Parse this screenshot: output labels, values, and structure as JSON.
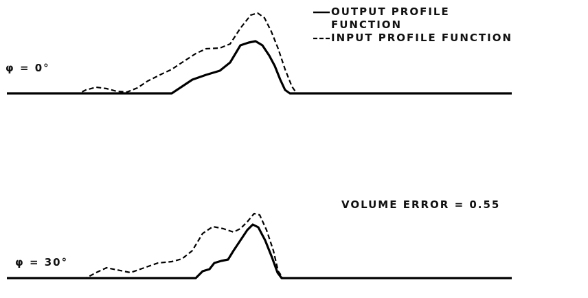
{
  "chart_data": [
    {
      "type": "line",
      "annotation": "φ = 0°",
      "legend": "top-right",
      "xlim": [
        10,
        745
      ],
      "ylim": [
        0,
        125
      ],
      "series": [
        {
          "name": "OUTPUT PROFILE FUNCTION",
          "color": "#000000",
          "dash": false,
          "x": [
            10,
            250,
            265,
            280,
            300,
            320,
            335,
            350,
            362,
            372,
            382,
            392,
            400,
            408,
            415,
            422,
            745
          ],
          "values": [
            0,
            0,
            10,
            20,
            27,
            33,
            45,
            70,
            74,
            76,
            70,
            55,
            40,
            20,
            5,
            0,
            0
          ]
        },
        {
          "name": "INPUT PROFILE FUNCTION",
          "color": "#000000",
          "dash": true,
          "x": [
            10,
            115,
            125,
            140,
            155,
            170,
            185,
            200,
            215,
            235,
            250,
            265,
            285,
            300,
            320,
            335,
            350,
            365,
            375,
            385,
            395,
            405,
            415,
            425,
            432,
            745
          ],
          "values": [
            0,
            0,
            5,
            9,
            7,
            3,
            2,
            8,
            18,
            28,
            35,
            45,
            58,
            65,
            66,
            72,
            95,
            114,
            117,
            110,
            90,
            65,
            35,
            10,
            0,
            0
          ]
        }
      ]
    },
    {
      "type": "line",
      "annotation": "φ = 30°",
      "note": "VOLUME ERROR = 0.55",
      "xlim": [
        10,
        745
      ],
      "ylim": [
        0,
        125
      ],
      "series": [
        {
          "color": "#000000",
          "dash": false,
          "x": [
            10,
            285,
            295,
            305,
            312,
            322,
            332,
            340,
            350,
            360,
            368,
            376,
            386,
            396,
            404,
            410,
            745
          ],
          "values": [
            0,
            0,
            10,
            13,
            22,
            25,
            27,
            40,
            55,
            70,
            78,
            74,
            55,
            30,
            8,
            0,
            0
          ]
        },
        {
          "color": "#000000",
          "dash": true,
          "x": [
            10,
            125,
            140,
            155,
            170,
            190,
            210,
            230,
            250,
            265,
            280,
            295,
            310,
            325,
            340,
            350,
            360,
            370,
            378,
            388,
            398,
            405,
            412,
            745
          ],
          "values": [
            0,
            0,
            8,
            15,
            12,
            8,
            15,
            22,
            24,
            28,
            40,
            65,
            75,
            72,
            67,
            72,
            82,
            94,
            92,
            70,
            40,
            10,
            0,
            0
          ]
        }
      ]
    }
  ]
}
